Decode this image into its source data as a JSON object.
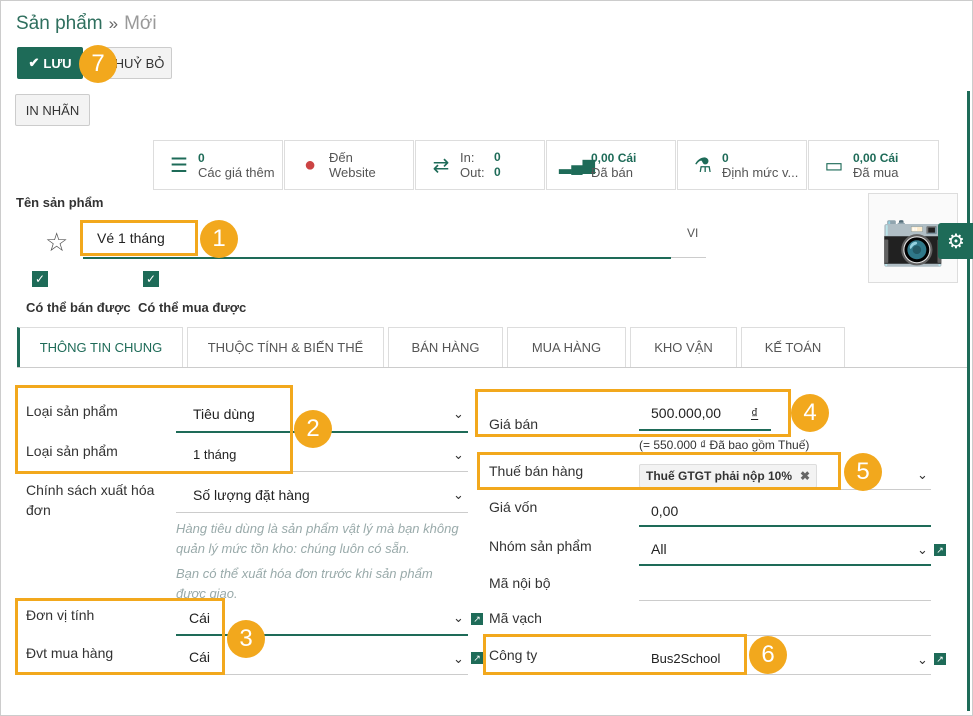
{
  "breadcrumb": {
    "current": "Sản phẩm",
    "separator": "»",
    "new": "Mới"
  },
  "buttons": {
    "save": "LƯU",
    "cancel": "HUỶ BỎ",
    "print_label": "IN NHÃN"
  },
  "badges": {
    "b1": "1",
    "b2": "2",
    "b3": "3",
    "b4": "4",
    "b5": "5",
    "b6": "6",
    "b7": "7"
  },
  "smart_buttons": [
    {
      "value": "0",
      "label": "Các giá thêm",
      "icon": "list-icon"
    },
    {
      "value": "Đến",
      "label": "Website",
      "icon": "globe-icon"
    },
    {
      "in_label": "In:",
      "in_value": "0",
      "out_label": "Out:",
      "out_value": "0",
      "icon": "exchange-icon"
    },
    {
      "value": "0,00 Cái",
      "label": "Đã bán",
      "icon": "signal-icon"
    },
    {
      "value": "0",
      "label": "Định mức v...",
      "icon": "flask-icon"
    },
    {
      "value": "0,00 Cái",
      "label": "Đã mua",
      "icon": "card-icon"
    }
  ],
  "product": {
    "name_label": "Tên sản phẩm",
    "name": "Vé 1 tháng",
    "lang": "VI",
    "can_sell": "Có thể bán được",
    "can_buy": "Có thể mua được"
  },
  "tabs": [
    "THÔNG TIN CHUNG",
    "THUỘC TÍNH & BIẾN THỂ",
    "BÁN HÀNG",
    "MUA HÀNG",
    "KHO VẬN",
    "KẾ TOÁN"
  ],
  "left": {
    "type_label": "Loại sản phẩm",
    "type_value": "Tiêu dùng",
    "type2_label": "Loại sản phẩm",
    "type2_value": "1 tháng",
    "invoice_label": "Chính sách xuất hóa đơn",
    "invoice_value": "Số lượng đặt hàng",
    "help1": "Hàng tiêu dùng là sản phẩm vật lý mà bạn không quản lý mức tồn kho: chúng luôn có sẵn.",
    "help2": "Bạn có thể xuất hóa đơn trước khi sản phẩm được giao.",
    "uom_label": "Đơn vị tính",
    "uom_value": "Cái",
    "po_uom_label": "Đvt mua hàng",
    "po_uom_value": "Cái"
  },
  "right": {
    "price_label": "Giá bán",
    "price_value": "500.000,00",
    "currency": "₫",
    "price_note": "(= 550.000 ₫ Đã bao gồm Thuế)",
    "tax_label": "Thuế bán hàng",
    "tax_tag": "Thuế GTGT phải nộp 10%",
    "cost_label": "Giá vốn",
    "cost_value": "0,00",
    "categ_label": "Nhóm sản phẩm",
    "categ_value": "All",
    "ref_label": "Mã nội bộ",
    "barcode_label": "Mã vạch",
    "company_label": "Công ty",
    "company_value": "Bus2School"
  }
}
